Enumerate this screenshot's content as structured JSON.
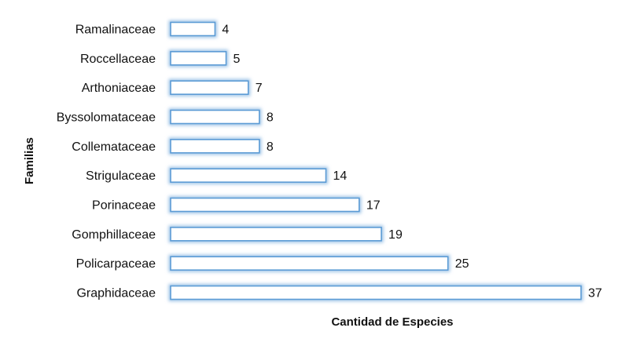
{
  "chart_data": {
    "type": "bar",
    "orientation": "horizontal",
    "categories": [
      "Ramalinaceae",
      "Roccellaceae",
      "Arthoniaceae",
      "Byssolomataceae",
      "Collemataceae",
      "Strigulaceae",
      "Porinaceae",
      "Gomphillaceae",
      "Policarpaceae",
      "Graphidaceae"
    ],
    "values": [
      4,
      5,
      7,
      8,
      8,
      14,
      17,
      19,
      25,
      37
    ],
    "title": "",
    "xlabel": "Cantidad de Especies",
    "ylabel": "Familias",
    "xlim": [
      0,
      37
    ],
    "grid": false,
    "legend": "none",
    "data_labels": true,
    "colors": {
      "bar_fill": "#ffffff",
      "bar_stroke": "#5b9bd5",
      "bar_glow": "#9dc3e6"
    }
  }
}
